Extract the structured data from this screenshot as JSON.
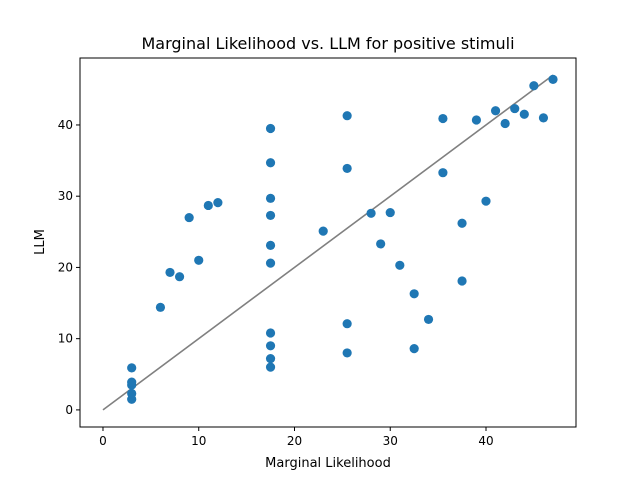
{
  "chart_data": {
    "type": "scatter",
    "title": "Marginal Likelihood vs. LLM for positive stimuli",
    "xlabel": "Marginal Likelihood",
    "ylabel": "LLM",
    "xlim": [
      -2.4,
      49.4
    ],
    "ylim": [
      -2.4,
      49.4
    ],
    "xticks": [
      0,
      10,
      20,
      30,
      40
    ],
    "yticks": [
      0,
      10,
      20,
      30,
      40
    ],
    "grid": false,
    "point_color": "#1f77b4",
    "line_color": "#808080",
    "reference_line": {
      "x": [
        0,
        47
      ],
      "y": [
        0,
        47
      ]
    },
    "points": [
      {
        "x": 3,
        "y": 1.5
      },
      {
        "x": 3,
        "y": 2.3
      },
      {
        "x": 3,
        "y": 3.5
      },
      {
        "x": 3,
        "y": 3.9
      },
      {
        "x": 3,
        "y": 5.9
      },
      {
        "x": 6,
        "y": 14.4
      },
      {
        "x": 7,
        "y": 19.3
      },
      {
        "x": 8,
        "y": 18.7
      },
      {
        "x": 9,
        "y": 27.0
      },
      {
        "x": 10,
        "y": 21.0
      },
      {
        "x": 11,
        "y": 28.7
      },
      {
        "x": 12,
        "y": 29.1
      },
      {
        "x": 17.5,
        "y": 6.0
      },
      {
        "x": 17.5,
        "y": 7.2
      },
      {
        "x": 17.5,
        "y": 9.0
      },
      {
        "x": 17.5,
        "y": 10.8
      },
      {
        "x": 17.5,
        "y": 20.6
      },
      {
        "x": 17.5,
        "y": 23.1
      },
      {
        "x": 17.5,
        "y": 27.3
      },
      {
        "x": 17.5,
        "y": 29.7
      },
      {
        "x": 17.5,
        "y": 34.7
      },
      {
        "x": 17.5,
        "y": 39.5
      },
      {
        "x": 23,
        "y": 25.1
      },
      {
        "x": 25.5,
        "y": 8.0
      },
      {
        "x": 25.5,
        "y": 12.1
      },
      {
        "x": 25.5,
        "y": 33.9
      },
      {
        "x": 25.5,
        "y": 41.3
      },
      {
        "x": 28,
        "y": 27.6
      },
      {
        "x": 29,
        "y": 23.3
      },
      {
        "x": 30,
        "y": 27.7
      },
      {
        "x": 31,
        "y": 20.3
      },
      {
        "x": 32.5,
        "y": 8.6
      },
      {
        "x": 32.5,
        "y": 16.3
      },
      {
        "x": 34,
        "y": 12.7
      },
      {
        "x": 35.5,
        "y": 33.3
      },
      {
        "x": 35.5,
        "y": 40.9
      },
      {
        "x": 37.5,
        "y": 18.1
      },
      {
        "x": 37.5,
        "y": 26.2
      },
      {
        "x": 39,
        "y": 40.7
      },
      {
        "x": 40,
        "y": 29.3
      },
      {
        "x": 41,
        "y": 42.0
      },
      {
        "x": 42,
        "y": 40.2
      },
      {
        "x": 43,
        "y": 42.3
      },
      {
        "x": 44,
        "y": 41.5
      },
      {
        "x": 45,
        "y": 45.5
      },
      {
        "x": 46,
        "y": 41.0
      },
      {
        "x": 47,
        "y": 46.4
      }
    ]
  }
}
